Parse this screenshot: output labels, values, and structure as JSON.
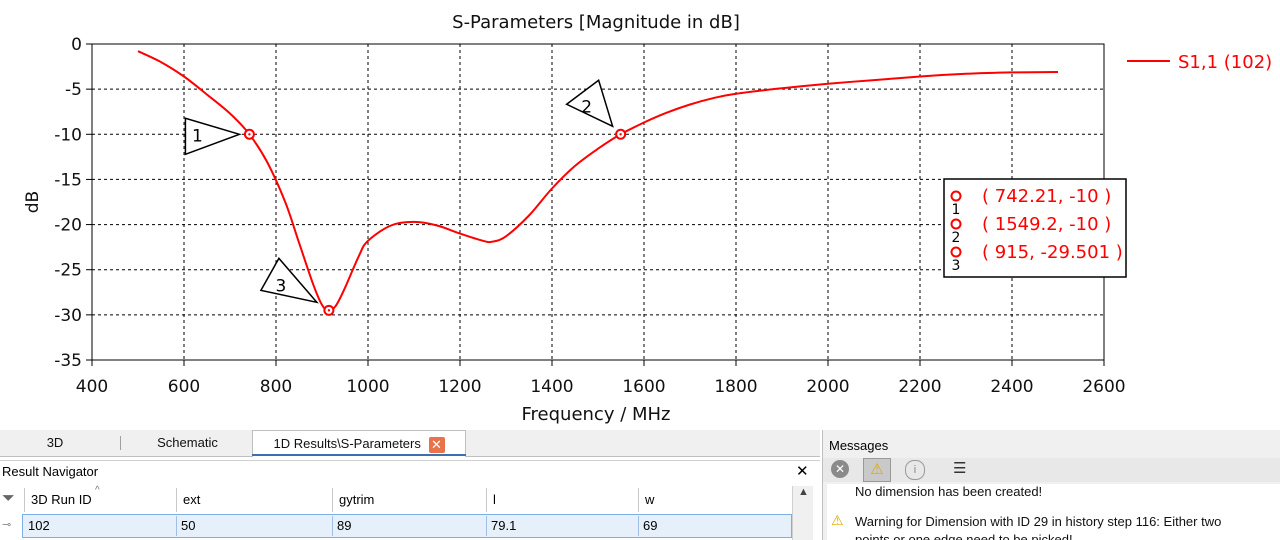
{
  "chart_data": {
    "type": "line",
    "title": "S-Parameters [Magnitude in dB]",
    "xlabel": "Frequency / MHz",
    "ylabel": "dB",
    "xlim": [
      400,
      2600
    ],
    "ylim": [
      -35,
      0
    ],
    "xticks": [
      400,
      600,
      800,
      1000,
      1200,
      1400,
      1600,
      1800,
      2000,
      2200,
      2400,
      2600
    ],
    "yticks": [
      0,
      -5,
      -10,
      -15,
      -20,
      -25,
      -30,
      -35
    ],
    "grid": true,
    "legend_position": "top-right, outside plot",
    "color": "#ff0000",
    "series": [
      {
        "name": "S1,1 (102)",
        "x": [
          500,
          550,
          600,
          650,
          700,
          742.21,
          780,
          820,
          850,
          880,
          900,
          915,
          930,
          950,
          980,
          1000,
          1050,
          1100,
          1150,
          1200,
          1250,
          1270,
          1300,
          1350,
          1400,
          1450,
          1500,
          1549.2,
          1600,
          1650,
          1700,
          1750,
          1800,
          1900,
          2000,
          2100,
          2200,
          2300,
          2400,
          2500
        ],
        "y": [
          -0.8,
          -2.0,
          -3.6,
          -5.6,
          -7.7,
          -10,
          -13,
          -17.5,
          -22,
          -26.5,
          -28.9,
          -29.501,
          -29.0,
          -27.0,
          -23.5,
          -21.8,
          -20.1,
          -19.7,
          -20.1,
          -21.0,
          -21.8,
          -21.9,
          -21.3,
          -19.0,
          -16.0,
          -13.5,
          -11.6,
          -10,
          -8.7,
          -7.6,
          -6.7,
          -6.0,
          -5.5,
          -4.9,
          -4.4,
          -4.0,
          -3.6,
          -3.3,
          -3.15,
          -3.1
        ]
      }
    ],
    "markers": [
      {
        "id": "1",
        "x": 742.21,
        "y": -10,
        "label": "( 742.21, -10 )"
      },
      {
        "id": "2",
        "x": 1549.2,
        "y": -10,
        "label": "( 1549.2, -10 )"
      },
      {
        "id": "3",
        "x": 915,
        "y": -29.501,
        "label": "( 915, -29.501 )"
      }
    ]
  },
  "tabs": {
    "tab_3d": "3D",
    "tab_schematic": "Schematic",
    "tab_1d": "1D Results\\S-Parameters",
    "close_glyph": "✕"
  },
  "result_navigator": {
    "title": "Result Navigator",
    "close_glyph": "✕",
    "headers": [
      "3D Run ID",
      "ext",
      "gytrim",
      "l",
      "w"
    ],
    "row": [
      "102",
      "50",
      "89",
      "79.1",
      "69"
    ]
  },
  "messages": {
    "title": "Messages",
    "line1": "No dimension has been created!",
    "line2": "Warning for Dimension with ID 29 in history step 116: Either two",
    "line3": "points or one edge need to be picked!"
  }
}
